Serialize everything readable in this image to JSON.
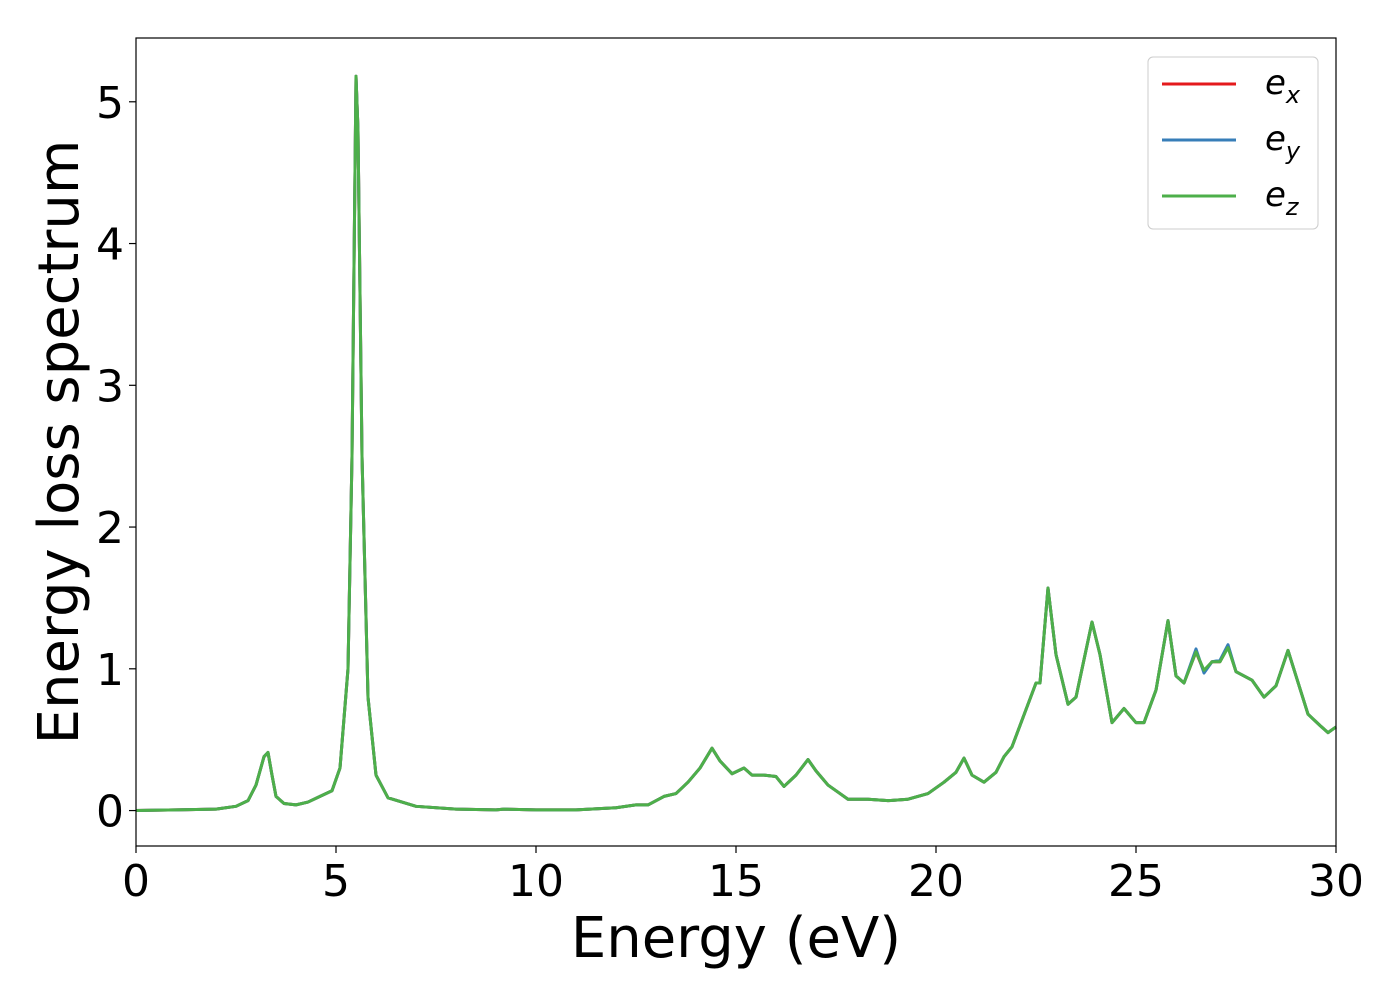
{
  "chart_data": {
    "type": "line",
    "xlabel": "Energy (eV)",
    "ylabel": "Energy loss spectrum",
    "x": [
      0,
      1,
      2,
      2.5,
      2.8,
      3.0,
      3.2,
      3.3,
      3.4,
      3.5,
      3.7,
      4.0,
      4.3,
      4.6,
      4.9,
      5.1,
      5.3,
      5.4,
      5.5,
      5.55,
      5.65,
      5.8,
      6.0,
      6.3,
      7,
      8,
      9,
      9.2,
      10,
      11,
      12,
      12.5,
      12.8,
      13.2,
      13.5,
      13.8,
      14.1,
      14.4,
      14.6,
      14.9,
      15.2,
      15.4,
      15.7,
      16.0,
      16.2,
      16.5,
      16.8,
      17.0,
      17.3,
      17.6,
      17.8,
      18.3,
      18.8,
      19.3,
      19.8,
      20.2,
      20.5,
      20.7,
      20.9,
      21.2,
      21.5,
      21.7,
      21.9,
      22.1,
      22.3,
      22.5,
      22.6,
      22.8,
      23.0,
      23.3,
      23.5,
      23.9,
      24.1,
      24.4,
      24.7,
      25.0,
      25.2,
      25.5,
      25.8,
      26.0,
      26.2,
      26.5,
      26.7,
      26.9,
      27.1,
      27.3,
      27.5,
      27.9,
      28.2,
      28.5,
      28.8,
      29.0,
      29.3,
      29.6,
      29.8,
      30.0
    ],
    "series": [
      {
        "name": "ex",
        "color": "#e41a1c",
        "values": [
          0,
          0.005,
          0.01,
          0.03,
          0.07,
          0.18,
          0.38,
          0.41,
          0.25,
          0.1,
          0.05,
          0.04,
          0.06,
          0.1,
          0.14,
          0.3,
          1.0,
          2.5,
          5.18,
          4.8,
          2.5,
          0.8,
          0.25,
          0.09,
          0.03,
          0.01,
          0.005,
          0.01,
          0.005,
          0.005,
          0.02,
          0.04,
          0.04,
          0.1,
          0.12,
          0.2,
          0.3,
          0.44,
          0.35,
          0.26,
          0.3,
          0.25,
          0.25,
          0.24,
          0.17,
          0.25,
          0.36,
          0.28,
          0.18,
          0.12,
          0.08,
          0.08,
          0.07,
          0.08,
          0.12,
          0.2,
          0.27,
          0.37,
          0.25,
          0.2,
          0.27,
          0.38,
          0.45,
          0.6,
          0.75,
          0.9,
          0.9,
          1.57,
          1.1,
          0.75,
          0.8,
          1.33,
          1.1,
          0.62,
          0.72,
          0.62,
          0.62,
          0.85,
          1.34,
          0.95,
          0.9,
          1.12,
          0.98,
          1.05,
          1.05,
          1.16,
          0.98,
          0.92,
          0.8,
          0.88,
          1.13,
          0.95,
          0.68,
          0.6,
          0.55,
          0.59
        ]
      },
      {
        "name": "ey",
        "color": "#377eb8",
        "values": [
          0,
          0.005,
          0.01,
          0.03,
          0.07,
          0.18,
          0.38,
          0.41,
          0.25,
          0.1,
          0.05,
          0.04,
          0.06,
          0.1,
          0.14,
          0.3,
          1.0,
          2.5,
          5.18,
          4.8,
          2.5,
          0.8,
          0.25,
          0.09,
          0.03,
          0.01,
          0.005,
          0.01,
          0.005,
          0.005,
          0.02,
          0.04,
          0.04,
          0.1,
          0.12,
          0.2,
          0.3,
          0.44,
          0.35,
          0.26,
          0.3,
          0.25,
          0.25,
          0.24,
          0.17,
          0.25,
          0.36,
          0.28,
          0.18,
          0.12,
          0.08,
          0.08,
          0.07,
          0.08,
          0.12,
          0.2,
          0.27,
          0.37,
          0.25,
          0.2,
          0.27,
          0.38,
          0.45,
          0.6,
          0.75,
          0.9,
          0.9,
          1.57,
          1.1,
          0.75,
          0.8,
          1.33,
          1.1,
          0.62,
          0.72,
          0.62,
          0.62,
          0.85,
          1.34,
          0.95,
          0.9,
          1.14,
          0.97,
          1.05,
          1.06,
          1.17,
          0.98,
          0.92,
          0.8,
          0.88,
          1.13,
          0.95,
          0.68,
          0.6,
          0.55,
          0.59
        ]
      },
      {
        "name": "ez",
        "color": "#4daf4a",
        "values": [
          0,
          0.005,
          0.01,
          0.03,
          0.07,
          0.18,
          0.38,
          0.41,
          0.25,
          0.1,
          0.05,
          0.04,
          0.06,
          0.1,
          0.14,
          0.3,
          1.0,
          2.5,
          5.18,
          4.8,
          2.5,
          0.8,
          0.25,
          0.09,
          0.03,
          0.01,
          0.005,
          0.01,
          0.005,
          0.005,
          0.02,
          0.04,
          0.04,
          0.1,
          0.12,
          0.2,
          0.3,
          0.44,
          0.35,
          0.26,
          0.3,
          0.25,
          0.25,
          0.24,
          0.17,
          0.25,
          0.36,
          0.28,
          0.18,
          0.12,
          0.08,
          0.08,
          0.07,
          0.08,
          0.12,
          0.2,
          0.27,
          0.37,
          0.25,
          0.2,
          0.27,
          0.38,
          0.45,
          0.6,
          0.75,
          0.9,
          0.9,
          1.57,
          1.1,
          0.75,
          0.8,
          1.33,
          1.1,
          0.62,
          0.72,
          0.62,
          0.62,
          0.85,
          1.34,
          0.95,
          0.9,
          1.12,
          0.99,
          1.05,
          1.05,
          1.15,
          0.98,
          0.92,
          0.8,
          0.88,
          1.13,
          0.95,
          0.68,
          0.6,
          0.55,
          0.59
        ]
      }
    ],
    "xlim": [
      0,
      30
    ],
    "xticks": [
      0,
      5,
      10,
      15,
      20,
      25,
      30
    ],
    "ylim": [
      -0.25,
      5.45
    ],
    "yticks": [
      0,
      1,
      2,
      3,
      4,
      5
    ],
    "legend": "upper right",
    "grid": false
  }
}
